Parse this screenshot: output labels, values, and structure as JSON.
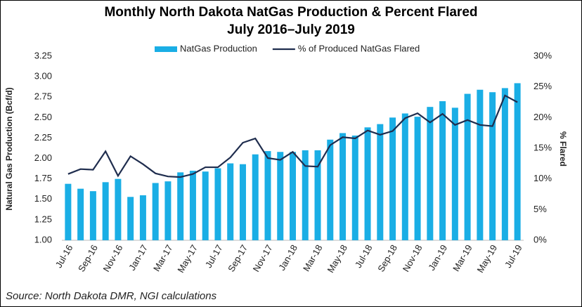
{
  "chart_data": {
    "type": "bar-line",
    "title": "Monthly North Dakota NatGas Production & Percent Flared",
    "subtitle": "July 2016–July 2019",
    "y_label": "Natural Gas Production (Bcf/d)",
    "y2_label": "% Flared",
    "source": "Source: North Dakota DMR, NGI calculations",
    "categories": [
      "Jul-16",
      null,
      "Sep-16",
      null,
      "Nov-16",
      null,
      "Jan-17",
      null,
      "Mar-17",
      null,
      "May-17",
      null,
      "Jul-17",
      null,
      "Sep-17",
      null,
      "Nov-17",
      null,
      "Jan-18",
      null,
      "Mar-18",
      null,
      "May-18",
      null,
      "Jul-18",
      null,
      "Sep-18",
      null,
      "Nov-18",
      null,
      "Jan-19",
      null,
      "Mar-19",
      null,
      "May-19",
      null,
      "Jul-19"
    ],
    "series": [
      {
        "name": "NatGas Production",
        "type": "bar",
        "color": "#1aaee5",
        "values": [
          1.69,
          1.63,
          1.6,
          1.71,
          1.75,
          1.53,
          1.55,
          1.7,
          1.72,
          1.83,
          1.85,
          1.84,
          1.88,
          1.94,
          1.93,
          2.05,
          2.09,
          2.08,
          2.08,
          2.1,
          2.1,
          2.23,
          2.31,
          2.28,
          2.38,
          2.42,
          2.5,
          2.55,
          2.51,
          2.63,
          2.7,
          2.62,
          2.79,
          2.84,
          2.81,
          2.86,
          2.92
        ]
      },
      {
        "name": "% of Produced NatGas Flared",
        "type": "line",
        "axis": "y2",
        "color": "#1f2d4e",
        "values": [
          10.8,
          11.6,
          11.5,
          14.5,
          10.5,
          13.7,
          12.4,
          10.9,
          10.4,
          10.3,
          10.8,
          11.9,
          11.9,
          13.5,
          15.9,
          16.6,
          13.4,
          13.1,
          14.4,
          12.1,
          12.0,
          15.5,
          16.8,
          16.6,
          17.9,
          17.2,
          17.8,
          19.9,
          20.7,
          19.2,
          20.6,
          18.8,
          19.6,
          18.8,
          18.6,
          23.6,
          22.5
        ]
      }
    ],
    "ylim": [
      1,
      3.25
    ],
    "yticks": [
      {
        "value": 1,
        "label": "1.00"
      },
      1.25,
      {
        "value": 1.5,
        "label": "1.50"
      },
      1.75,
      {
        "value": 2,
        "label": "2.00"
      },
      2.25,
      {
        "value": 2.5,
        "label": "2.50"
      },
      2.75,
      {
        "value": 3,
        "label": "3.00"
      },
      3.25
    ],
    "y2lim": [
      0,
      30
    ],
    "y2ticks": [
      {
        "value": 0,
        "label": "0%"
      },
      {
        "value": 5,
        "label": "5%"
      },
      {
        "value": 10,
        "label": "10%"
      },
      {
        "value": 15,
        "label": "15%"
      },
      {
        "value": 20,
        "label": "20%"
      },
      {
        "value": 25,
        "label": "25%"
      },
      {
        "value": 30,
        "label": "30%"
      }
    ],
    "grid": false,
    "legend": "top"
  }
}
